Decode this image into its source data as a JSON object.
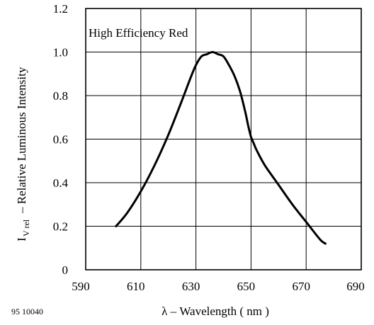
{
  "chart_data": {
    "type": "line",
    "title": "",
    "annotation": "High Efficiency Red",
    "xlabel": "λ – Wavelength ( nm )",
    "ylabel_main": "I",
    "ylabel_sub": "V rel",
    "ylabel_rest": "– Relative Luminous Intensity",
    "xlim": [
      590,
      690
    ],
    "ylim": [
      0,
      1.2
    ],
    "x_ticks": [
      590,
      610,
      630,
      650,
      670,
      690
    ],
    "y_ticks": [
      0,
      0.2,
      0.4,
      0.6,
      0.8,
      1.0,
      1.2
    ],
    "x_tick_labels": [
      "590",
      "610",
      "630",
      "650",
      "670",
      "690"
    ],
    "y_tick_labels": [
      "0",
      "0.2",
      "0.4",
      "0.6",
      "0.8",
      "1.0",
      "1.2"
    ],
    "grid": true,
    "series": [
      {
        "x": [
          601,
          605,
          610,
          615,
          620,
          625,
          628,
          630,
          632,
          634,
          636,
          638,
          640,
          642,
          644,
          646,
          648,
          649,
          650,
          651,
          652,
          655,
          660,
          665,
          670,
          675,
          677
        ],
        "y": [
          0.2,
          0.26,
          0.36,
          0.48,
          0.62,
          0.78,
          0.88,
          0.94,
          0.98,
          0.99,
          1.0,
          0.99,
          0.98,
          0.94,
          0.89,
          0.82,
          0.72,
          0.66,
          0.61,
          0.58,
          0.55,
          0.48,
          0.39,
          0.3,
          0.22,
          0.14,
          0.12
        ],
        "color": "#000000"
      }
    ]
  },
  "figure_code": "95 10040"
}
